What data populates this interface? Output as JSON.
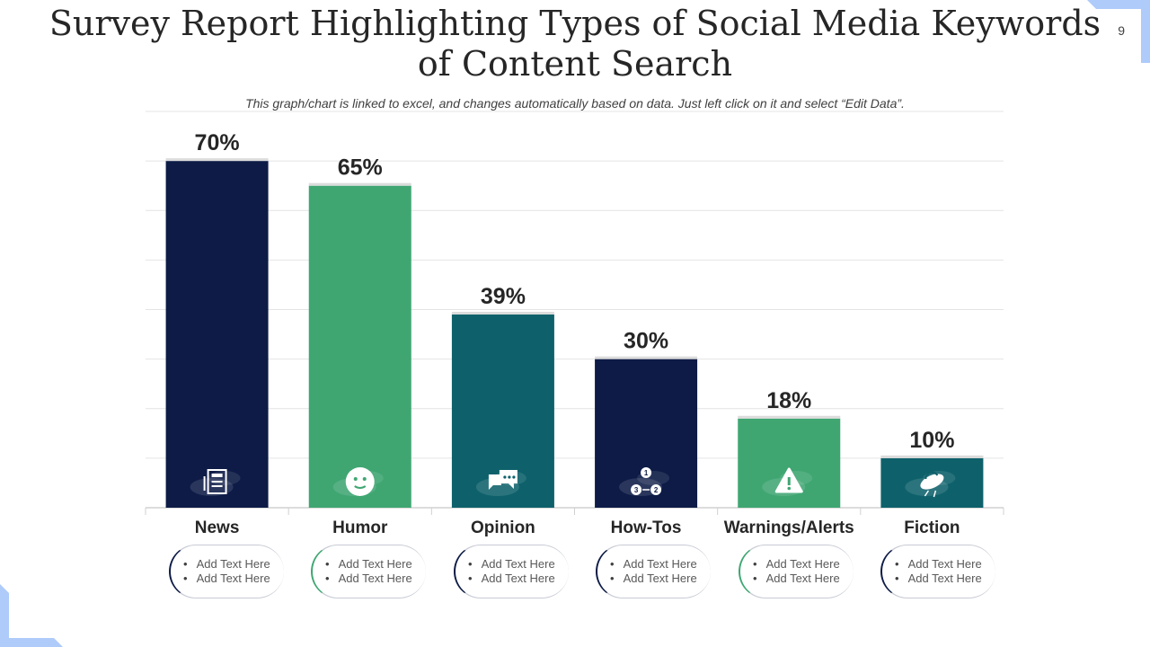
{
  "page": {
    "title": "Survey Report Highlighting Types of Social Media Keywords of Content Search",
    "page_number": "9",
    "subtitle": "This graph/chart is linked to excel, and changes automatically based on data. Just left click on it and select “Edit Data”."
  },
  "colors": {
    "navy": "#0d1b46",
    "green": "#3fa672",
    "teal": "#0e616b",
    "accent_blue": "#aecbfa"
  },
  "chart_data": {
    "type": "bar",
    "categories": [
      "News",
      "Humor",
      "Opinion",
      "How-Tos",
      "Warnings/Alerts",
      "Fiction"
    ],
    "values": [
      70,
      65,
      39,
      30,
      18,
      10
    ],
    "value_labels": [
      "70%",
      "65%",
      "39%",
      "30%",
      "18%",
      "10%"
    ],
    "bar_colors": [
      "#0d1b46",
      "#3fa672",
      "#0e616b",
      "#0d1b46",
      "#3fa672",
      "#0e616b"
    ],
    "icons": [
      "newspaper-icon",
      "smiley-icon",
      "chat-bubbles-icon",
      "numbered-steps-icon",
      "warning-icon",
      "ufo-icon"
    ],
    "ylim": [
      0,
      80
    ],
    "grid": true,
    "legend": "none",
    "title": "",
    "xlabel": "",
    "ylabel": ""
  },
  "notes": [
    {
      "items": [
        "Add Text Here",
        "Add Text Here"
      ]
    },
    {
      "items": [
        "Add Text Here",
        "Add Text Here"
      ]
    },
    {
      "items": [
        "Add Text Here",
        "Add Text Here"
      ]
    },
    {
      "items": [
        "Add Text Here",
        "Add Text Here"
      ]
    },
    {
      "items": [
        "Add Text Here",
        "Add Text Here"
      ]
    },
    {
      "items": [
        "Add Text Here",
        "Add Text Here"
      ]
    }
  ]
}
